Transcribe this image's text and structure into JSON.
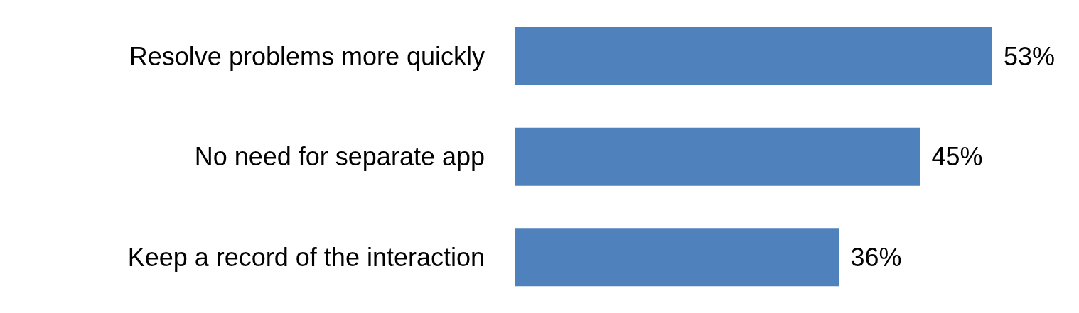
{
  "chart_data": {
    "type": "bar",
    "orientation": "horizontal",
    "categories": [
      "Resolve problems more quickly",
      "No need for separate app",
      "Keep a record of the interaction"
    ],
    "values": [
      53,
      45,
      36
    ],
    "color": "#4f81bd",
    "value_labels": [
      "53%",
      "45%",
      "36%"
    ]
  }
}
